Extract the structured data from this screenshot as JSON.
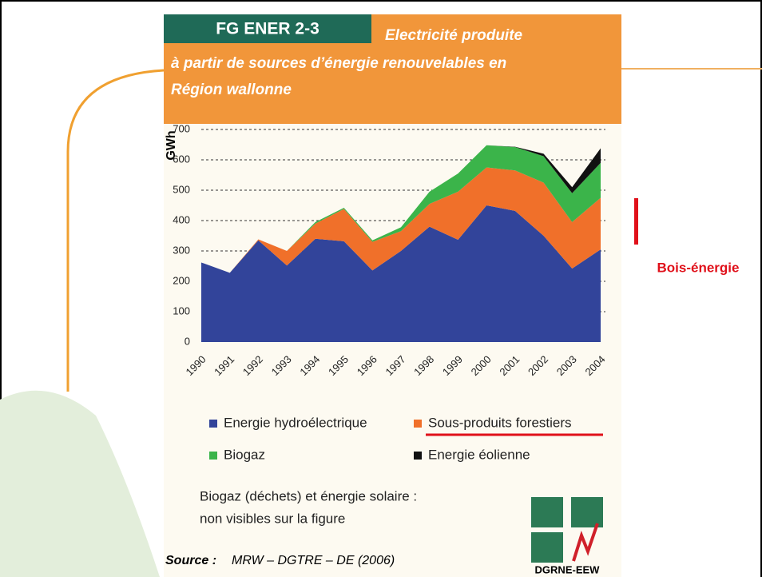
{
  "figure_label": "FG ENER 2-3",
  "chart_data": {
    "type": "stacked-area",
    "title": [
      "Electricité produite",
      "à partir de sources d’énergie renouvelables en",
      "Région wallonne"
    ],
    "ylabel": "GWh",
    "categories": [
      "1990",
      "1991",
      "1992",
      "1993",
      "1994",
      "1995",
      "1996",
      "1997",
      "1998",
      "1999",
      "2000",
      "2001",
      "2002",
      "2003",
      "2004"
    ],
    "series": [
      {
        "name": "Energie hydroélectrique",
        "color": "#32449a",
        "values": [
          262,
          228,
          335,
          252,
          340,
          332,
          236,
          300,
          380,
          337,
          450,
          432,
          350,
          242,
          305
        ]
      },
      {
        "name": "Sous-produits forestiers",
        "color": "#f0702a",
        "values": [
          0,
          0,
          3,
          48,
          50,
          106,
          94,
          65,
          75,
          158,
          125,
          133,
          175,
          153,
          170
        ]
      },
      {
        "name": "Biogaz",
        "color": "#3bb44a",
        "values": [
          0,
          0,
          0,
          0,
          5,
          4,
          5,
          13,
          40,
          60,
          73,
          77,
          87,
          95,
          115
        ]
      },
      {
        "name": "Energie éolienne",
        "color": "#111111",
        "values": [
          0,
          0,
          0,
          0,
          0,
          0,
          0,
          0,
          0,
          0,
          0,
          1,
          8,
          20,
          48
        ]
      }
    ],
    "ylim": [
      0,
      700
    ],
    "yticks": [
      0,
      100,
      200,
      300,
      400,
      500,
      600,
      700
    ],
    "grid": true
  },
  "note": [
    "Biogaz (déchets) et énergie solaire :",
    "non visibles sur la figure"
  ],
  "source_label": "Source :",
  "source": "MRW – DGTRE – DE (2006)",
  "logo_text": "DGRNE-EEW",
  "annotation": "Bois-énergie"
}
